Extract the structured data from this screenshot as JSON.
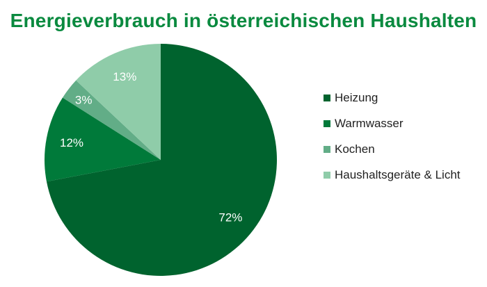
{
  "chart_data": {
    "type": "pie",
    "title": "Energieverbrauch in österreichischen Haushalten",
    "slices": [
      {
        "name": "Heizung",
        "value": 72,
        "label": "72%",
        "color": "#00632e"
      },
      {
        "name": "Warmwasser",
        "value": 12,
        "label": "12%",
        "color": "#007a3a"
      },
      {
        "name": "Kochen",
        "value": 3,
        "label": "3%",
        "color": "#62ad87"
      },
      {
        "name": "Haushaltsgeräte & Licht",
        "value": 13,
        "label": "13%",
        "color": "#8fcca9"
      }
    ],
    "legend_position": "right"
  }
}
